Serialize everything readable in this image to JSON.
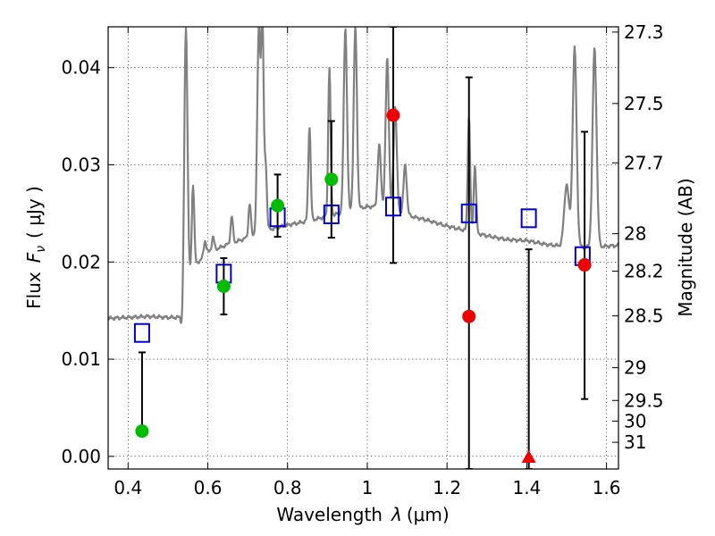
{
  "chart_data": {
    "type": "scatter",
    "xlabel": "Wavelength",
    "xlabel_symbol": "λ",
    "xlabel_unit": "(μm)",
    "ylabel": "Flux",
    "ylabel_symbol": "F",
    "ylabel_symbol_sub": "ν",
    "ylabel_unit": "( μJy )",
    "y2label": "Magnitude (AB)",
    "xlim": [
      0.35,
      1.63
    ],
    "ylim": [
      -0.0013,
      0.0442
    ],
    "grid": true,
    "x_ticks": [
      {
        "value": 0.4,
        "label": "0.4"
      },
      {
        "value": 0.6,
        "label": "0.6"
      },
      {
        "value": 0.8,
        "label": "0.8"
      },
      {
        "value": 1.0,
        "label": "1"
      },
      {
        "value": 1.2,
        "label": "1.2"
      },
      {
        "value": 1.4,
        "label": "1.4"
      },
      {
        "value": 1.6,
        "label": "1.6"
      }
    ],
    "y_ticks": [
      {
        "value": 0.0,
        "label": "0.00"
      },
      {
        "value": 0.01,
        "label": "0.01"
      },
      {
        "value": 0.02,
        "label": "0.02"
      },
      {
        "value": 0.03,
        "label": "0.03"
      },
      {
        "value": 0.04,
        "label": "0.04"
      }
    ],
    "y2_ticks": [
      {
        "mag": 27.3,
        "label": "27.3"
      },
      {
        "mag": 27.5,
        "label": "27.5"
      },
      {
        "mag": 27.7,
        "label": "27.7"
      },
      {
        "mag": 28.0,
        "label": "28"
      },
      {
        "mag": 28.2,
        "label": "28.2"
      },
      {
        "mag": 28.5,
        "label": "28.5"
      },
      {
        "mag": 29.0,
        "label": "29"
      },
      {
        "mag": 29.5,
        "label": "29.5"
      },
      {
        "mag": 30.0,
        "label": "30"
      },
      {
        "mag": 31.0,
        "label": "31"
      }
    ],
    "colors": {
      "spectrum": "#808080",
      "model_box": "#0000cc",
      "detection": "#00bb00",
      "measurement": "#ee0000",
      "error_bar": "#000000"
    },
    "spectrum": {
      "name": "",
      "continuum": [
        [
          0.35,
          0.0142
        ],
        [
          0.4,
          0.0143
        ],
        [
          0.45,
          0.0144
        ],
        [
          0.5,
          0.0143
        ],
        [
          0.53,
          0.0143
        ],
        [
          0.535,
          0.0131
        ],
        [
          0.545,
          0.016
        ],
        [
          0.56,
          0.0193
        ],
        [
          0.6,
          0.021
        ],
        [
          0.65,
          0.0218
        ],
        [
          0.7,
          0.0225
        ],
        [
          0.75,
          0.0233
        ],
        [
          0.8,
          0.0238
        ],
        [
          0.85,
          0.0242
        ],
        [
          0.9,
          0.0247
        ],
        [
          0.95,
          0.0252
        ],
        [
          1.0,
          0.0257
        ],
        [
          1.05,
          0.0256
        ],
        [
          1.1,
          0.0248
        ],
        [
          1.15,
          0.0243
        ],
        [
          1.2,
          0.0237
        ],
        [
          1.25,
          0.0232
        ],
        [
          1.3,
          0.0227
        ],
        [
          1.35,
          0.0223
        ],
        [
          1.4,
          0.0222
        ],
        [
          1.45,
          0.0218
        ],
        [
          1.5,
          0.0216
        ],
        [
          1.55,
          0.0215
        ],
        [
          1.63,
          0.0217
        ]
      ],
      "lines": [
        {
          "x": 0.545,
          "peak": 0.0442,
          "w": 0.004
        },
        {
          "x": 0.563,
          "peak": 0.028,
          "w": 0.003
        },
        {
          "x": 0.593,
          "peak": 0.0222,
          "w": 0.003
        },
        {
          "x": 0.613,
          "peak": 0.0226,
          "w": 0.003
        },
        {
          "x": 0.66,
          "peak": 0.0247,
          "w": 0.003
        },
        {
          "x": 0.705,
          "peak": 0.026,
          "w": 0.003
        },
        {
          "x": 0.728,
          "peak": 0.0442,
          "w": 0.004
        },
        {
          "x": 0.737,
          "peak": 0.0442,
          "w": 0.003
        },
        {
          "x": 0.745,
          "peak": 0.03,
          "w": 0.003
        },
        {
          "x": 0.855,
          "peak": 0.034,
          "w": 0.003
        },
        {
          "x": 0.905,
          "peak": 0.04,
          "w": 0.003
        },
        {
          "x": 0.945,
          "peak": 0.0442,
          "w": 0.004
        },
        {
          "x": 0.97,
          "peak": 0.0442,
          "w": 0.004
        },
        {
          "x": 1.03,
          "peak": 0.032,
          "w": 0.004
        },
        {
          "x": 1.05,
          "peak": 0.041,
          "w": 0.004
        },
        {
          "x": 1.07,
          "peak": 0.036,
          "w": 0.004
        },
        {
          "x": 1.095,
          "peak": 0.03,
          "w": 0.004
        },
        {
          "x": 1.255,
          "peak": 0.035,
          "w": 0.003
        },
        {
          "x": 1.27,
          "peak": 0.03,
          "w": 0.003
        },
        {
          "x": 1.5,
          "peak": 0.028,
          "w": 0.006
        },
        {
          "x": 1.52,
          "peak": 0.042,
          "w": 0.005
        },
        {
          "x": 1.57,
          "peak": 0.042,
          "w": 0.005
        }
      ]
    },
    "model_boxes": [
      {
        "x": 0.435,
        "y": 0.0127
      },
      {
        "x": 0.64,
        "y": 0.0188
      },
      {
        "x": 0.775,
        "y": 0.0246
      },
      {
        "x": 0.91,
        "y": 0.0249
      },
      {
        "x": 1.065,
        "y": 0.0257
      },
      {
        "x": 1.255,
        "y": 0.025
      },
      {
        "x": 1.405,
        "y": 0.0245
      },
      {
        "x": 1.54,
        "y": 0.0206
      }
    ],
    "detections": [
      {
        "x": 0.435,
        "y": 0.0026,
        "err_low": 0.0026,
        "err_high": 0.0107
      },
      {
        "x": 0.64,
        "y": 0.0175,
        "err_low": 0.0146,
        "err_high": 0.0204
      },
      {
        "x": 0.775,
        "y": 0.0258,
        "err_low": 0.0226,
        "err_high": 0.029
      },
      {
        "x": 0.91,
        "y": 0.0285,
        "err_low": 0.0225,
        "err_high": 0.0345
      }
    ],
    "measurements": [
      {
        "x": 1.065,
        "y": 0.0351,
        "err_low": 0.0199,
        "err_high": 0.0442
      },
      {
        "x": 1.255,
        "y": 0.0144,
        "err_low": -0.0013,
        "err_high": 0.039
      },
      {
        "x": 1.545,
        "y": 0.0197,
        "err_low": 0.0059,
        "err_high": 0.0334
      }
    ],
    "upper_limits": [
      {
        "x": 1.405,
        "y": -0.0001,
        "err_low": -0.0013,
        "err_high": 0.0213
      }
    ]
  }
}
